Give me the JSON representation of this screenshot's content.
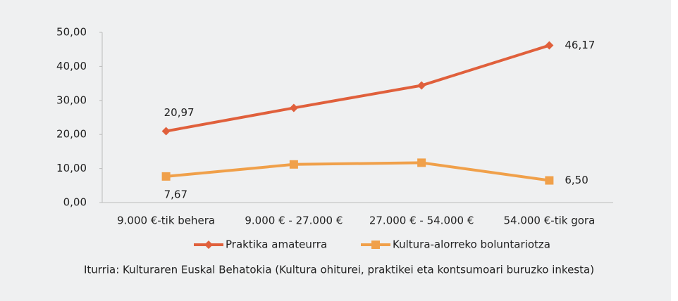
{
  "chart_data": {
    "type": "line",
    "categories": [
      "9.000 €-tik behera",
      "9.000 € - 27.000 €",
      "27.000 € - 54.000 €",
      "54.000 €-tik gora"
    ],
    "series": [
      {
        "name": "Praktika amateurra",
        "color": "#e0603c",
        "marker": "diamond",
        "values": [
          20.97,
          27.8,
          34.4,
          46.17
        ],
        "value_labels": [
          "20,97",
          null,
          null,
          "46,17"
        ]
      },
      {
        "name": "Kultura-alorreko boluntariotza",
        "color": "#f0a04a",
        "marker": "square",
        "values": [
          7.67,
          11.2,
          11.7,
          6.5
        ],
        "value_labels": [
          "7,67",
          null,
          null,
          "6,50"
        ]
      }
    ],
    "ylim": [
      0,
      50
    ],
    "yticks": [
      {
        "value": 0,
        "label": "0,00"
      },
      {
        "value": 10,
        "label": "10,00"
      },
      {
        "value": 20,
        "label": "20,00"
      },
      {
        "value": 30,
        "label": "30,00"
      },
      {
        "value": 40,
        "label": "40,00"
      },
      {
        "value": 50,
        "label": "50,00"
      }
    ],
    "legend": "bottom",
    "source": "Iturria: Kulturaren Euskal Behatokia (Kultura ohiturei, praktikei eta kontsumoari buruzko inkesta)"
  }
}
